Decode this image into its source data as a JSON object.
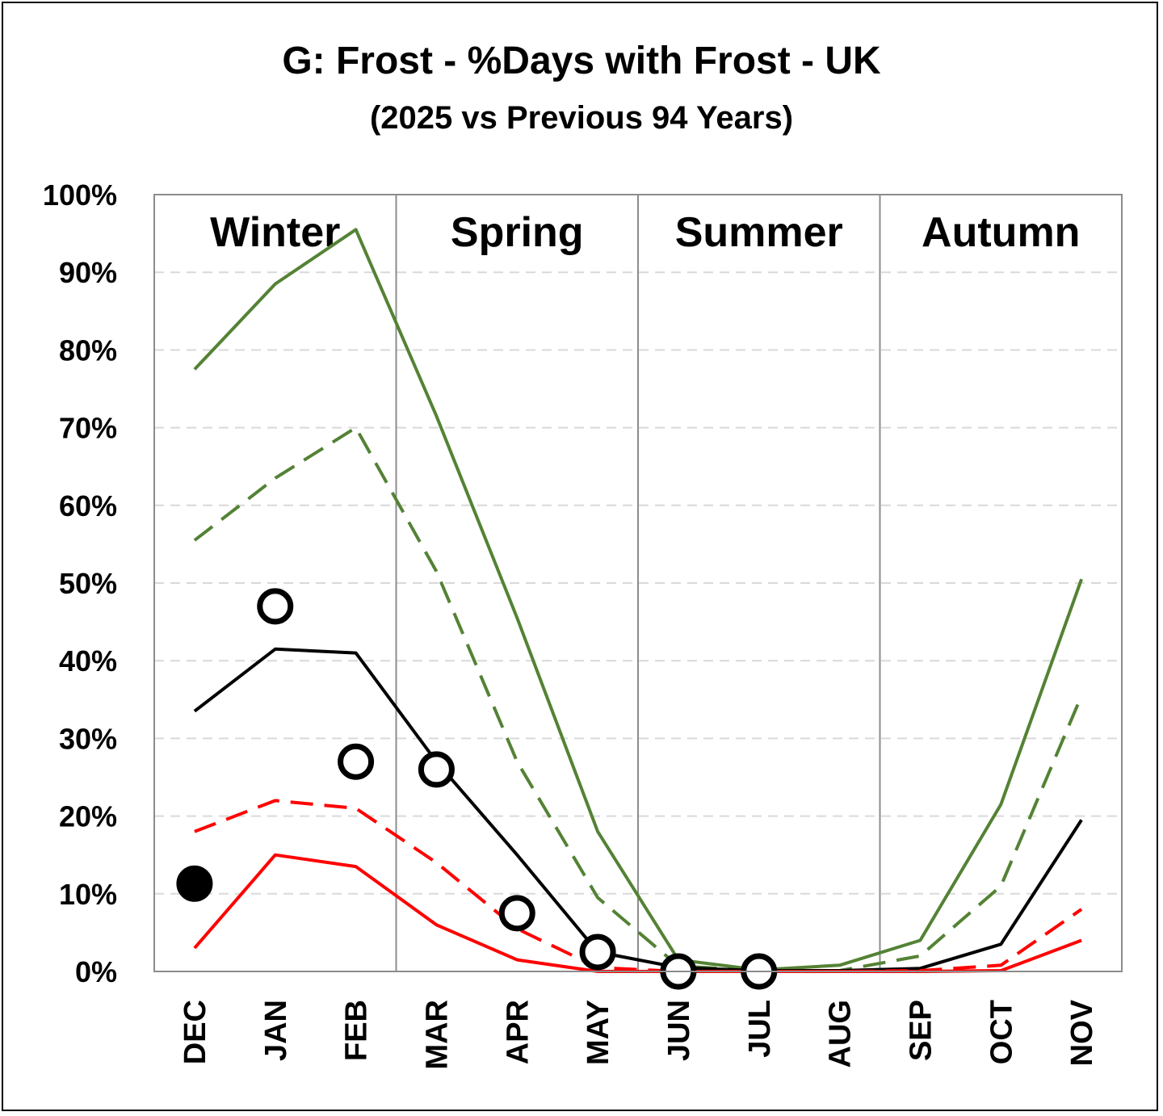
{
  "chart_data": {
    "type": "line",
    "title": "G: Frost - %Days with Frost - UK",
    "subtitle": "(2025 vs Previous 94 Years)",
    "categories": [
      "DEC",
      "JAN",
      "FEB",
      "MAR",
      "APR",
      "MAY",
      "JUN",
      "JUL",
      "AUG",
      "SEP",
      "OCT",
      "NOV"
    ],
    "ylim": [
      0,
      100
    ],
    "yticks": [
      "0%",
      "10%",
      "20%",
      "30%",
      "40%",
      "50%",
      "60%",
      "70%",
      "80%",
      "90%",
      "100%"
    ],
    "grid": "horizontal dashed",
    "seasons": [
      "Winter",
      "Spring",
      "Summer",
      "Autumn"
    ],
    "series": [
      {
        "color": "#548235",
        "style": "solid",
        "values": [
          77.5,
          88.5,
          95.5,
          71.5,
          45.5,
          18.0,
          1.5,
          0.2,
          0.8,
          4.0,
          21.5,
          50.5
        ]
      },
      {
        "color": "#548235",
        "style": "dashed",
        "values": [
          55.5,
          63.5,
          70.0,
          51.5,
          27.0,
          9.5,
          0.7,
          0.1,
          0.1,
          2.0,
          11.0,
          35.5
        ]
      },
      {
        "color": "#000000",
        "style": "solid",
        "values": [
          33.5,
          41.5,
          41.0,
          27.0,
          15.0,
          2.5,
          0.5,
          0.1,
          0.1,
          0.4,
          3.5,
          19.5
        ]
      },
      {
        "color": "#ff0000",
        "style": "dashed",
        "values": [
          18.0,
          22.0,
          21.0,
          14.0,
          5.5,
          0.5,
          0.0,
          0.0,
          0.0,
          0.1,
          0.8,
          8.0
        ]
      },
      {
        "color": "#ff0000",
        "style": "solid",
        "values": [
          3.0,
          15.0,
          13.5,
          6.0,
          1.5,
          0.0,
          0.0,
          0.0,
          0.0,
          0.0,
          0.1,
          4.0
        ]
      }
    ],
    "markers": [
      {
        "category": "DEC",
        "value": 11.3,
        "filled": true
      },
      {
        "category": "JAN",
        "value": 47.0,
        "filled": false
      },
      {
        "category": "FEB",
        "value": 27.0,
        "filled": false
      },
      {
        "category": "MAR",
        "value": 26.0,
        "filled": false
      },
      {
        "category": "APR",
        "value": 7.5,
        "filled": false
      },
      {
        "category": "MAY",
        "value": 2.5,
        "filled": false
      },
      {
        "category": "JUN",
        "value": 0.0,
        "filled": false
      },
      {
        "category": "JUL",
        "value": 0.0,
        "filled": false
      }
    ]
  }
}
